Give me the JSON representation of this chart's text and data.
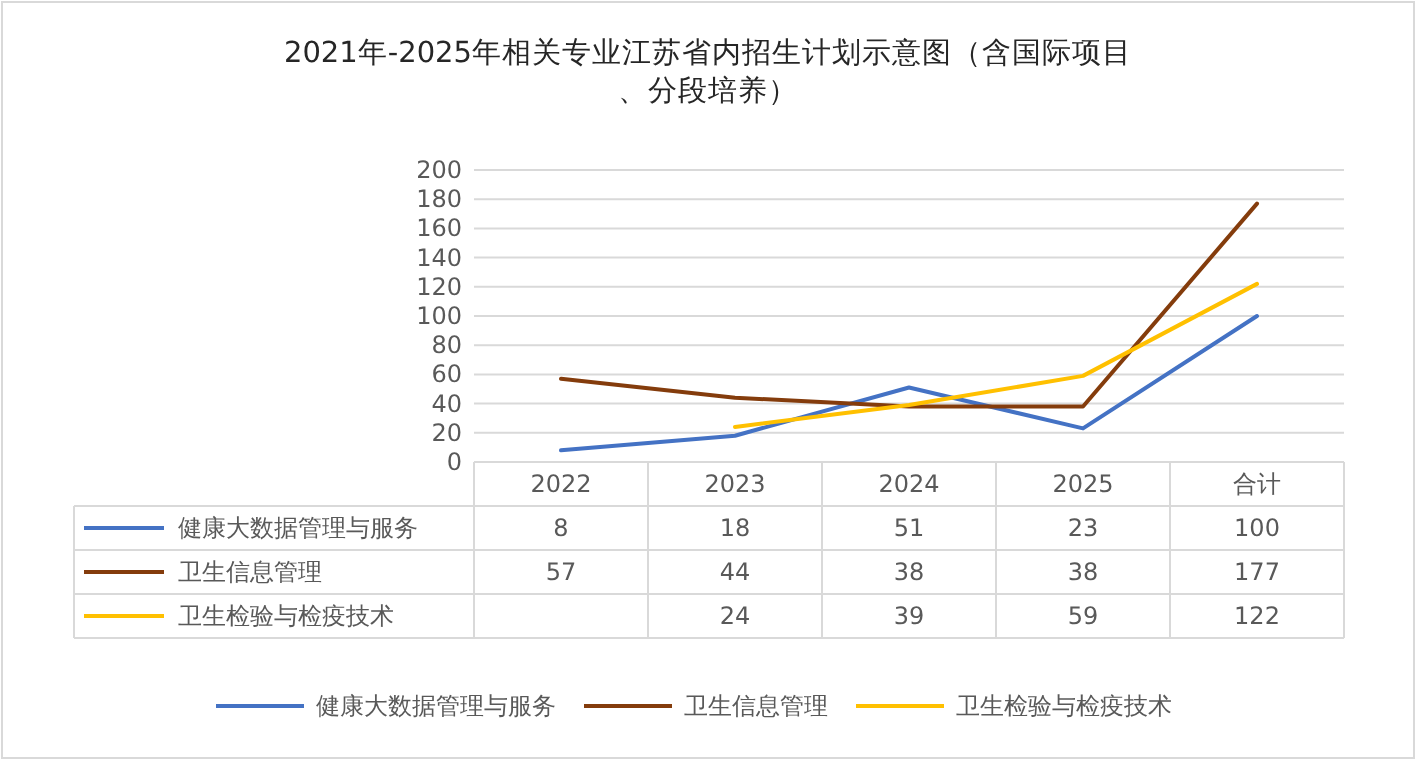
{
  "chart_data": {
    "type": "line",
    "title": "2021年-2025年相关专业江苏省内招生计划示意图（含国际项目、分段培养）",
    "categories": [
      "2022",
      "2023",
      "2024",
      "2025",
      "合计"
    ],
    "series": [
      {
        "name": "健康大数据管理与服务",
        "color": "#4472c4",
        "values": [
          8,
          18,
          51,
          23,
          100
        ]
      },
      {
        "name": "卫生信息管理",
        "color": "#843c0c",
        "values": [
          57,
          44,
          38,
          38,
          177
        ]
      },
      {
        "name": "卫生检验与检疫技术",
        "color": "#ffc000",
        "values": [
          null,
          24,
          39,
          59,
          122
        ]
      }
    ],
    "ylim": [
      0,
      200
    ],
    "yticks": [
      0,
      20,
      40,
      60,
      80,
      100,
      120,
      140,
      160,
      180,
      200
    ],
    "grid": "y",
    "legend": "bottom",
    "data_labels": true,
    "line_style": "solid",
    "marker": "none"
  }
}
